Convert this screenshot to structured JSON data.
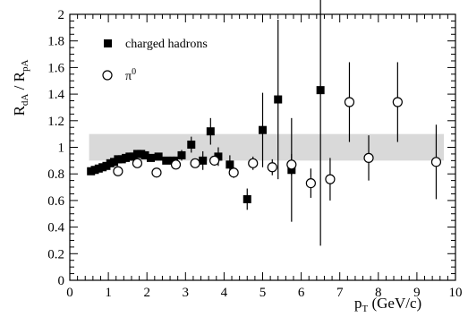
{
  "chart_data": {
    "type": "scatter",
    "ylabel": {
      "main": "R",
      "sub1": "dA",
      "mid": " / R",
      "sub2": "pA"
    },
    "xlabel": {
      "main": "p",
      "sub": "T",
      "unit": " (GeV/c)"
    },
    "xlim": [
      0,
      10
    ],
    "ylim": [
      0,
      2
    ],
    "x_ticks": [
      "0",
      "1",
      "2",
      "3",
      "4",
      "5",
      "6",
      "7",
      "8",
      "9",
      "10"
    ],
    "y_ticks": [
      "0",
      "0.2",
      "0.4",
      "0.6",
      "0.8",
      "1",
      "1.2",
      "1.4",
      "1.6",
      "1.8",
      "2"
    ],
    "grid": false,
    "legend_position": "top-left",
    "band": {
      "x": [
        0.5,
        9.7
      ],
      "y": [
        0.9,
        1.1
      ],
      "color": "#d9d9d9"
    },
    "series": [
      {
        "name": "charged hadrons",
        "legend_label": "charged hadrons",
        "marker": "filled-square",
        "color": "#000000",
        "points": [
          {
            "x": 0.55,
            "y": 0.82,
            "err": 0.01
          },
          {
            "x": 0.65,
            "y": 0.83,
            "err": 0.01
          },
          {
            "x": 0.75,
            "y": 0.84,
            "err": 0.01
          },
          {
            "x": 0.85,
            "y": 0.85,
            "err": 0.01
          },
          {
            "x": 0.95,
            "y": 0.86,
            "err": 0.01
          },
          {
            "x": 1.05,
            "y": 0.88,
            "err": 0.01
          },
          {
            "x": 1.15,
            "y": 0.89,
            "err": 0.01
          },
          {
            "x": 1.25,
            "y": 0.91,
            "err": 0.01
          },
          {
            "x": 1.35,
            "y": 0.91,
            "err": 0.01
          },
          {
            "x": 1.45,
            "y": 0.92,
            "err": 0.01
          },
          {
            "x": 1.55,
            "y": 0.93,
            "err": 0.01
          },
          {
            "x": 1.65,
            "y": 0.93,
            "err": 0.01
          },
          {
            "x": 1.75,
            "y": 0.95,
            "err": 0.01
          },
          {
            "x": 1.85,
            "y": 0.95,
            "err": 0.01
          },
          {
            "x": 1.95,
            "y": 0.94,
            "err": 0.01
          },
          {
            "x": 2.1,
            "y": 0.92,
            "err": 0.02
          },
          {
            "x": 2.3,
            "y": 0.93,
            "err": 0.02
          },
          {
            "x": 2.5,
            "y": 0.9,
            "err": 0.02
          },
          {
            "x": 2.7,
            "y": 0.9,
            "err": 0.03
          },
          {
            "x": 2.9,
            "y": 0.94,
            "err": 0.04
          },
          {
            "x": 3.15,
            "y": 1.02,
            "err": 0.06
          },
          {
            "x": 3.45,
            "y": 0.9,
            "err": 0.07
          },
          {
            "x": 3.65,
            "y": 1.12,
            "err": 0.1
          },
          {
            "x": 3.85,
            "y": 0.93,
            "err": 0.07
          },
          {
            "x": 4.15,
            "y": 0.87,
            "err": 0.07
          },
          {
            "x": 4.6,
            "y": 0.61,
            "err": 0.08
          },
          {
            "x": 5.0,
            "y": 1.13,
            "err": 0.28
          },
          {
            "x": 5.4,
            "y": 1.36,
            "err": 0.6
          },
          {
            "x": 5.75,
            "y": 0.83,
            "err": 0.39
          },
          {
            "x": 6.5,
            "y": 1.43,
            "err": 1.17
          }
        ]
      },
      {
        "name": "π0",
        "legend_label": "π",
        "legend_sup": "0",
        "marker": "open-circle",
        "color": "#000000",
        "points": [
          {
            "x": 1.25,
            "y": 0.82,
            "err": 0.02
          },
          {
            "x": 1.75,
            "y": 0.88,
            "err": 0.02
          },
          {
            "x": 2.25,
            "y": 0.81,
            "err": 0.02
          },
          {
            "x": 2.75,
            "y": 0.87,
            "err": 0.03
          },
          {
            "x": 3.25,
            "y": 0.88,
            "err": 0.03
          },
          {
            "x": 3.75,
            "y": 0.9,
            "err": 0.03
          },
          {
            "x": 4.25,
            "y": 0.81,
            "err": 0.04
          },
          {
            "x": 4.75,
            "y": 0.88,
            "err": 0.05
          },
          {
            "x": 5.25,
            "y": 0.85,
            "err": 0.06
          },
          {
            "x": 5.75,
            "y": 0.87,
            "err": 0.08
          },
          {
            "x": 6.25,
            "y": 0.73,
            "err": 0.11
          },
          {
            "x": 6.75,
            "y": 0.76,
            "err": 0.16
          },
          {
            "x": 7.25,
            "y": 1.34,
            "err": 0.3
          },
          {
            "x": 7.75,
            "y": 0.92,
            "err": 0.17
          },
          {
            "x": 8.5,
            "y": 1.34,
            "err": 0.3
          },
          {
            "x": 9.5,
            "y": 0.89,
            "err": 0.28
          }
        ]
      }
    ]
  }
}
